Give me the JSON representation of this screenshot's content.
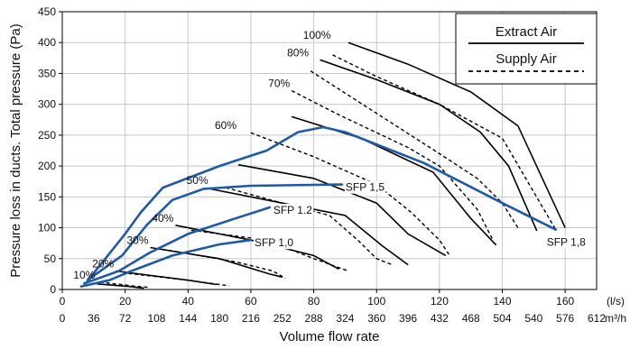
{
  "chart_data": {
    "type": "line",
    "xlabel": "Volume flow rate",
    "ylabel": "Pressure loss in ducts. Total pressure (Pa)",
    "x_unit_ls": "(l/s)",
    "x_unit_m3h": "m³/h",
    "xlim": [
      0,
      170
    ],
    "ylim": [
      0,
      450
    ],
    "x_ticks": [
      0,
      20,
      40,
      60,
      80,
      100,
      120,
      140,
      160
    ],
    "x_ticks_m3h": [
      0,
      36,
      72,
      108,
      144,
      180,
      216,
      252,
      288,
      324,
      360,
      396,
      432,
      468,
      504,
      540,
      576,
      612
    ],
    "y_ticks": [
      0,
      50,
      100,
      150,
      200,
      250,
      300,
      350,
      400,
      450
    ],
    "grid": true,
    "legend_position": "top-right",
    "legend": [
      {
        "label": "Extract Air",
        "style": "solid"
      },
      {
        "label": "Supply Air",
        "style": "dashed"
      }
    ],
    "series": [
      {
        "label": "100%",
        "label_at": [
          93,
          410
        ],
        "extract": [
          [
            91,
            400
          ],
          [
            110,
            365
          ],
          [
            130,
            320
          ],
          [
            145,
            265
          ],
          [
            160,
            100
          ]
        ],
        "supply": [
          [
            86,
            380
          ],
          [
            100,
            345
          ],
          [
            120,
            300
          ],
          [
            140,
            245
          ],
          [
            157,
            97
          ]
        ]
      },
      {
        "label": "80%",
        "extract": [
          [
            82,
            372
          ],
          [
            100,
            340
          ],
          [
            120,
            300
          ],
          [
            133,
            255
          ],
          [
            142,
            200
          ],
          [
            151,
            95
          ]
        ],
        "supply": [
          [
            79,
            354
          ],
          [
            120,
            220
          ],
          [
            132,
            180
          ],
          [
            140,
            140
          ],
          [
            145,
            100
          ]
        ]
      },
      {
        "label": "70%",
        "extract": [
          [
            73,
            280
          ],
          [
            95,
            245
          ],
          [
            118,
            190
          ],
          [
            130,
            115
          ],
          [
            138,
            72
          ]
        ],
        "supply": [
          [
            73,
            322
          ],
          [
            88,
            283
          ],
          [
            110,
            230
          ],
          [
            120,
            200
          ],
          [
            132,
            130
          ],
          [
            137,
            80
          ]
        ]
      },
      {
        "label": "60%",
        "extract": [
          [
            56,
            202
          ],
          [
            80,
            180
          ],
          [
            100,
            140
          ],
          [
            110,
            90
          ],
          [
            122,
            55
          ]
        ],
        "supply": [
          [
            60,
            254
          ],
          [
            80,
            215
          ],
          [
            100,
            170
          ],
          [
            111,
            125
          ],
          [
            120,
            80
          ],
          [
            123,
            57
          ]
        ]
      },
      {
        "label": "50%",
        "extract": [
          [
            47,
            163
          ],
          [
            70,
            140
          ],
          [
            90,
            120
          ],
          [
            102,
            70
          ],
          [
            110,
            40
          ]
        ],
        "supply": [
          [
            52,
            165
          ],
          [
            70,
            140
          ],
          [
            85,
            120
          ],
          [
            94,
            80
          ],
          [
            100,
            50
          ],
          [
            105,
            40
          ]
        ]
      },
      {
        "label": "40%",
        "extract": [
          [
            36,
            104
          ],
          [
            60,
            80
          ],
          [
            80,
            55
          ],
          [
            88,
            33
          ]
        ],
        "supply": [
          [
            41,
            96
          ],
          [
            65,
            80
          ],
          [
            80,
            50
          ],
          [
            91,
            30
          ]
        ]
      },
      {
        "label": "30%",
        "extract": [
          [
            28,
            68
          ],
          [
            50,
            50
          ],
          [
            66,
            25
          ],
          [
            70,
            20
          ]
        ],
        "supply": [
          [
            32,
            65
          ],
          [
            55,
            45
          ],
          [
            67,
            30
          ],
          [
            71,
            18
          ]
        ]
      },
      {
        "label": "20%",
        "extract": [
          [
            17,
            30
          ],
          [
            40,
            15
          ],
          [
            49,
            8
          ]
        ],
        "supply": [
          [
            21,
            26
          ],
          [
            40,
            15
          ],
          [
            53,
            6
          ]
        ]
      },
      {
        "label": "10%",
        "extract": [
          [
            11,
            9
          ],
          [
            21,
            5
          ],
          [
            26,
            2
          ]
        ],
        "supply": [
          [
            12,
            12
          ],
          [
            22,
            6
          ],
          [
            28,
            3
          ]
        ]
      }
    ],
    "sfp_curves": [
      {
        "label": "SFP 1,0",
        "points": [
          [
            6,
            5
          ],
          [
            15,
            15
          ],
          [
            22,
            30
          ],
          [
            35,
            55
          ],
          [
            50,
            73
          ],
          [
            60,
            80
          ]
        ]
      },
      {
        "label": "SFP 1.2",
        "points": [
          [
            7,
            10
          ],
          [
            18,
            30
          ],
          [
            28,
            60
          ],
          [
            40,
            90
          ],
          [
            55,
            115
          ],
          [
            66,
            133
          ]
        ]
      },
      {
        "label": "SFP 1,5",
        "points": [
          [
            8,
            15
          ],
          [
            19,
            55
          ],
          [
            27,
            105
          ],
          [
            35,
            145
          ],
          [
            45,
            163
          ],
          [
            60,
            168
          ],
          [
            89,
            170
          ]
        ]
      },
      {
        "label": "SFP 1,8",
        "points": [
          [
            9,
            20
          ],
          [
            20,
            90
          ],
          [
            25,
            125
          ],
          [
            32,
            165
          ],
          [
            50,
            200
          ],
          [
            65,
            225
          ],
          [
            75,
            255
          ],
          [
            83,
            263
          ],
          [
            90,
            255
          ],
          [
            115,
            205
          ],
          [
            140,
            140
          ],
          [
            157,
            97
          ]
        ]
      }
    ]
  }
}
